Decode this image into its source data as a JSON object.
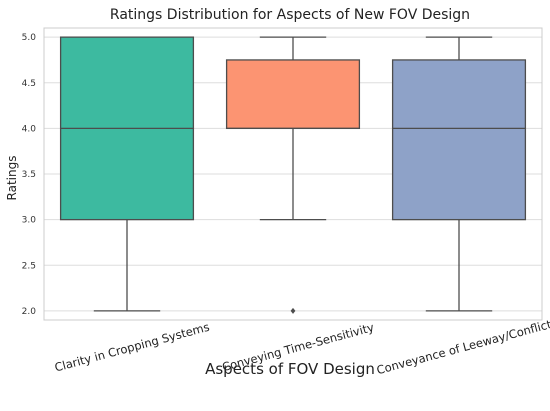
{
  "chart_data": {
    "type": "box",
    "title": "Ratings Distribution for Aspects of New FOV Design",
    "xlabel": "Aspects of FOV Design",
    "ylabel": "Ratings",
    "ylim": [
      1.9,
      5.1
    ],
    "yticks": [
      "2.0",
      "2.5",
      "3.0",
      "3.5",
      "4.0",
      "4.5",
      "5.0"
    ],
    "grid": "horizontal",
    "categories": [
      "Clarity in Cropping Systems",
      "Conveying Time-Sensitivity",
      "Conveyance of Leeway/Conflict"
    ],
    "boxes": [
      {
        "category": "Clarity in Cropping Systems",
        "whisker_low": 2.0,
        "q1": 3.0,
        "median": 4.0,
        "q3": 5.0,
        "whisker_high": 5.0,
        "outliers": [],
        "color": "#3dbaa0"
      },
      {
        "category": "Conveying Time-Sensitivity",
        "whisker_low": 3.0,
        "q1": 4.0,
        "median": 4.0,
        "q3": 4.75,
        "whisker_high": 5.0,
        "outliers": [
          2.0
        ],
        "color": "#fc9472"
      },
      {
        "category": "Conveyance of Leeway/Conflict",
        "whisker_low": 2.0,
        "q1": 3.0,
        "median": 4.0,
        "q3": 4.75,
        "whisker_high": 5.0,
        "outliers": [],
        "color": "#8ea2c8"
      }
    ]
  },
  "colors": {
    "background": "#ffffff",
    "grid": "#dddddd",
    "line": "#4d4d4d"
  }
}
